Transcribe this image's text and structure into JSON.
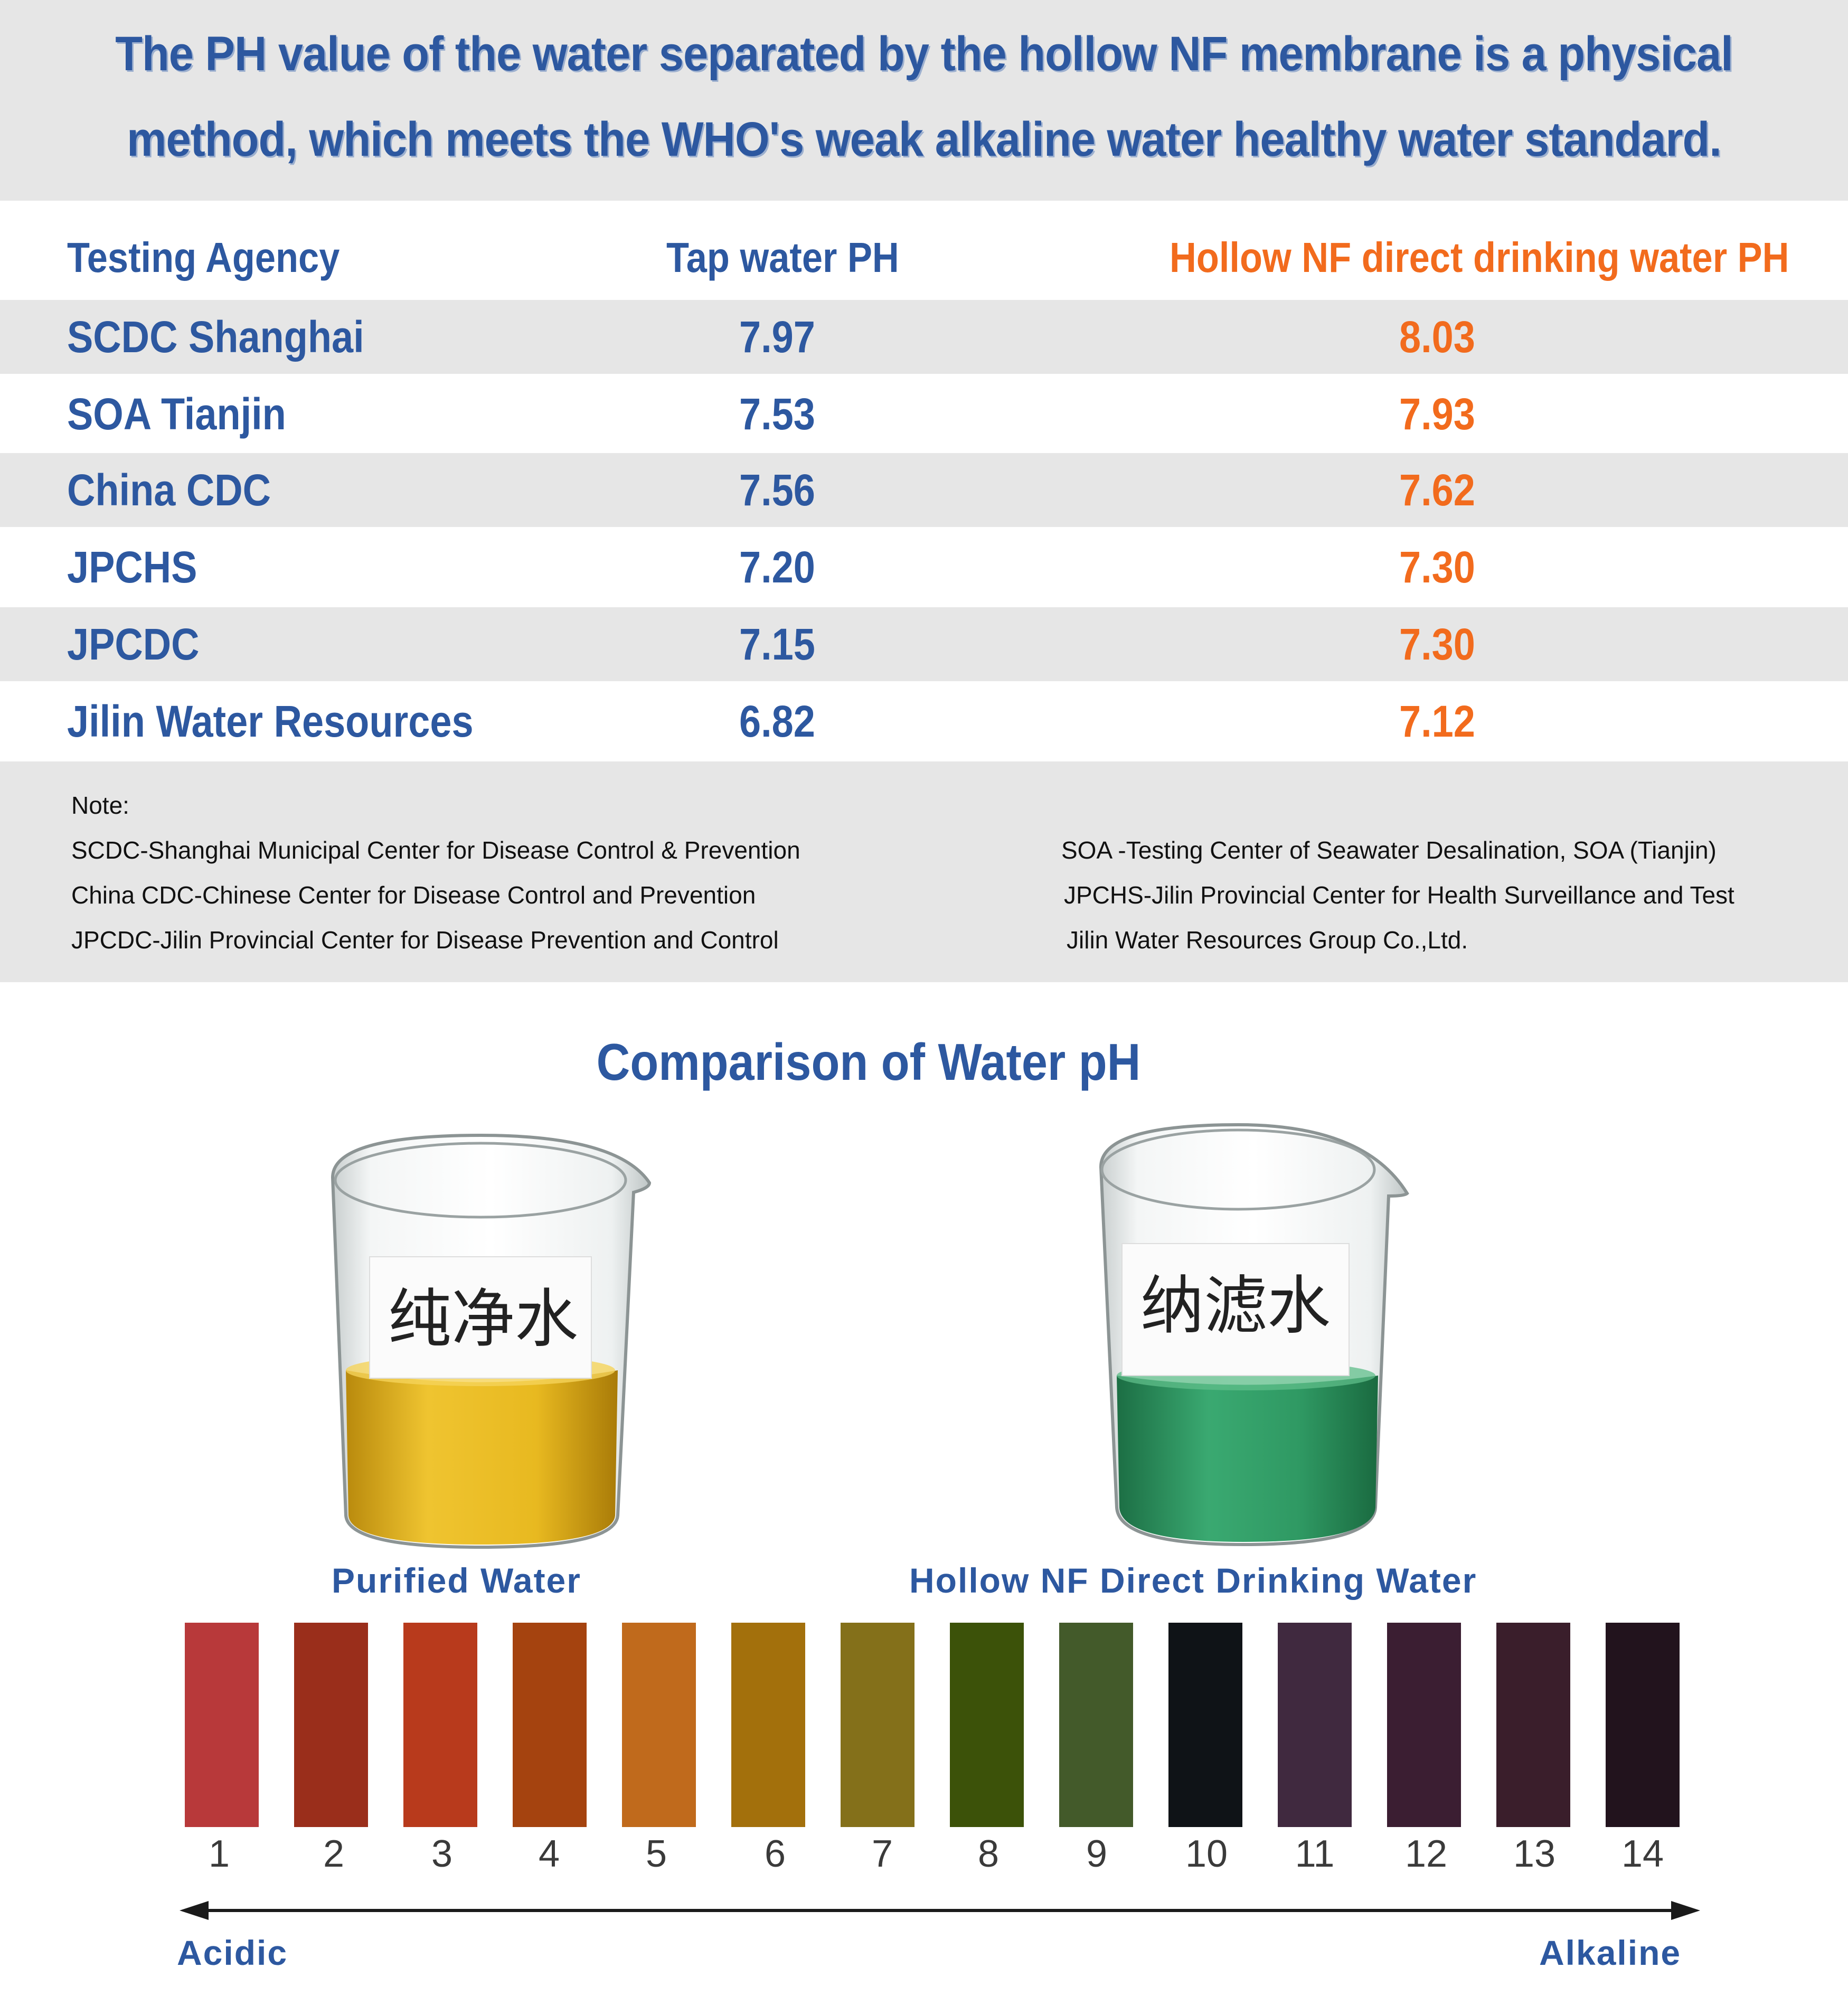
{
  "header": {
    "line1": "The PH value of the water separated by the hollow NF membrane is a physical",
    "line2": "method, which meets the WHO's weak alkaline water healthy water standard."
  },
  "table": {
    "headers": [
      "Testing Agency",
      "Tap water PH",
      "Hollow NF direct drinking water PH"
    ],
    "rows": [
      {
        "agency": "SCDC Shanghai",
        "tap": "7.97",
        "nf": "8.03"
      },
      {
        "agency": "SOA Tianjin",
        "tap": "7.53",
        "nf": "7.93"
      },
      {
        "agency": "China CDC",
        "tap": "7.56",
        "nf": "7.62"
      },
      {
        "agency": "JPCHS",
        "tap": "7.20",
        "nf": "7.30"
      },
      {
        "agency": "JPCDC",
        "tap": "7.15",
        "nf": "7.30"
      },
      {
        "agency": "Jilin Water Resources",
        "tap": "6.82",
        "nf": "7.12"
      }
    ]
  },
  "notes": {
    "title": "Note:",
    "left": [
      "SCDC-Shanghai Municipal Center for Disease Control & Prevention",
      "China CDC-Chinese Center for Disease Control and Prevention",
      "JPCDC-Jilin Provincial Center for Disease Prevention and Control"
    ],
    "right": [
      "SOA -Testing Center of Seawater Desalination, SOA (Tianjin)",
      "JPCHS-Jilin Provincial Center for Health Surveillance and Test",
      "Jilin Water Resources Group Co.,Ltd."
    ]
  },
  "comparison": {
    "title": "Comparison of Water pH",
    "beaker_left": {
      "label": "纯净水",
      "caption": "Purified Water",
      "liquid_color": "#e2b318"
    },
    "beaker_right": {
      "label": "纳滤水",
      "caption": "Hollow NF Direct Drinking Water",
      "liquid_color": "#2e9a62"
    }
  },
  "ph_scale": {
    "numbers": [
      "1",
      "2",
      "3",
      "4",
      "5",
      "6",
      "7",
      "8",
      "9",
      "10",
      "11",
      "12",
      "13",
      "14"
    ],
    "colors": [
      "#b8393a",
      "#9a2e1b",
      "#b83a1c",
      "#a5430f",
      "#c06a1c",
      "#a3700c",
      "#84701a",
      "#3c5209",
      "#435a2a",
      "#0f1317",
      "#40293f",
      "#3b1e32",
      "#3a1e2b",
      "#22131d"
    ],
    "left_label": "Acidic",
    "right_label": "Alkaline"
  }
}
